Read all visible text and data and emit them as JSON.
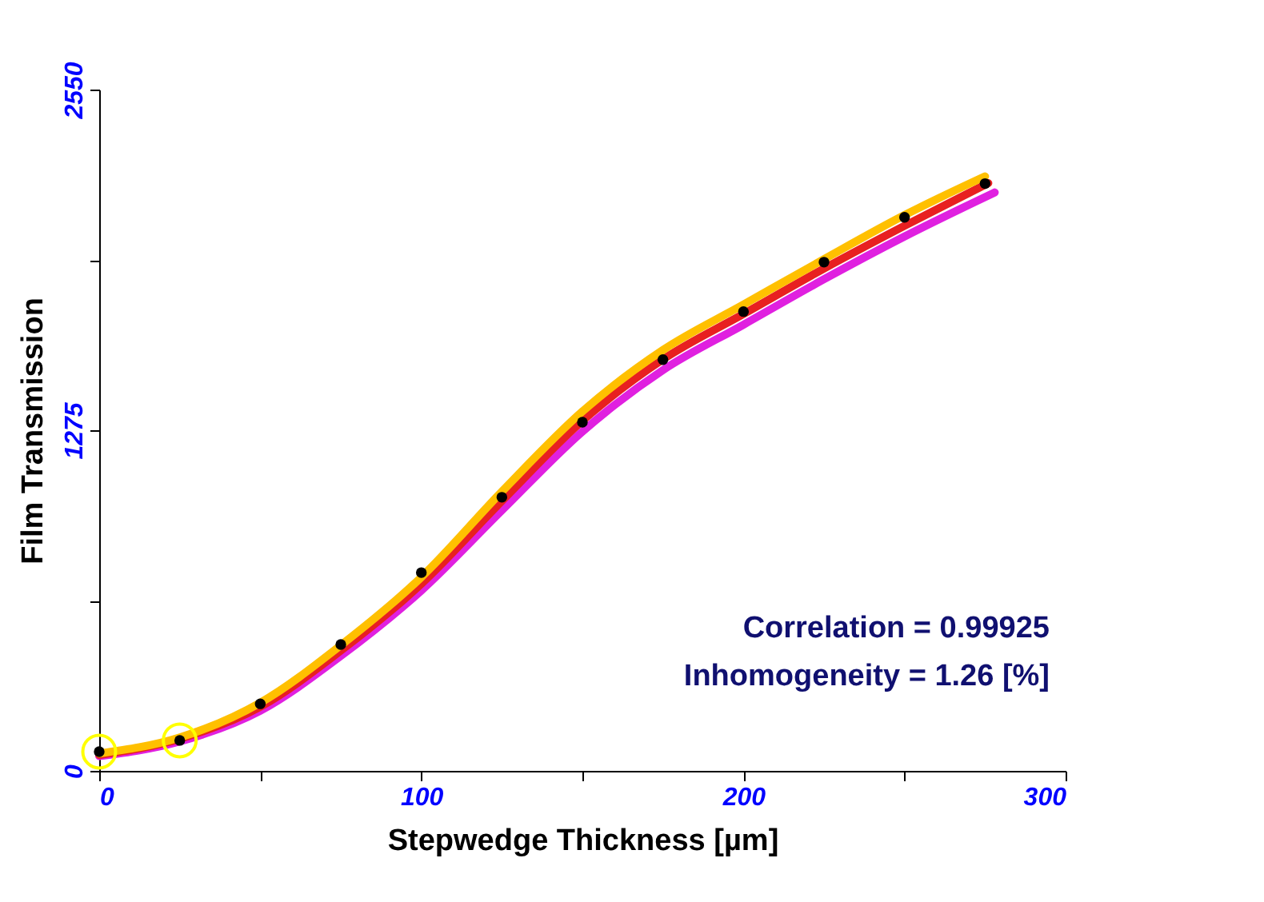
{
  "chart_data": {
    "type": "line",
    "xlabel": "Stepwedge Thickness [µm]",
    "ylabel": "Film Transmission",
    "xlim": [
      0,
      300
    ],
    "ylim": [
      0,
      2550
    ],
    "xticks": [
      0,
      {
        "value": 50,
        "label": null
      },
      100,
      {
        "value": 150,
        "label": null
      },
      200,
      {
        "value": 250,
        "label": null
      },
      300
    ],
    "yticks": [
      0,
      {
        "value": 637.5,
        "label": null
      },
      1275,
      {
        "value": 1912.5,
        "label": null
      },
      2550
    ],
    "grid": false,
    "annotations": [
      "Correlation = 0.99925",
      "Inhomogeneity = 1.26 [%]"
    ],
    "series": [
      {
        "color": "#e020e0",
        "x": [
          0,
          25,
          50,
          75,
          100,
          125,
          150,
          175,
          200,
          225,
          250,
          278
        ],
        "values": [
          55,
          110,
          225,
          430,
          675,
          975,
          1270,
          1500,
          1670,
          1840,
          2000,
          2165
        ]
      },
      {
        "color": "#e82020",
        "x": [
          0,
          25,
          50,
          75,
          100,
          125,
          150,
          175,
          200,
          225,
          250,
          276
        ],
        "values": [
          60,
          120,
          240,
          450,
          700,
          1010,
          1310,
          1540,
          1710,
          1880,
          2040,
          2200
        ]
      },
      {
        "color": "#ffc000",
        "x": [
          0,
          25,
          50,
          75,
          100,
          125,
          150,
          175,
          200,
          225,
          250,
          275
        ],
        "values": [
          65,
          125,
          255,
          470,
          725,
          1045,
          1345,
          1575,
          1745,
          1915,
          2080,
          2225
        ]
      },
      {
        "type": "scatter",
        "color": "#000000",
        "marker": "circle",
        "x": [
          0,
          25,
          50,
          75,
          100,
          125,
          150,
          175,
          200,
          225,
          250,
          275
        ],
        "values": [
          72,
          114,
          251,
          473,
          742,
          1024,
          1305,
          1539,
          1719,
          1904,
          2072,
          2198
        ]
      },
      {
        "type": "scatter",
        "color": "#ffff00",
        "marker": "circle",
        "x": [
          0,
          25
        ],
        "values": [
          72,
          114
        ]
      }
    ]
  }
}
